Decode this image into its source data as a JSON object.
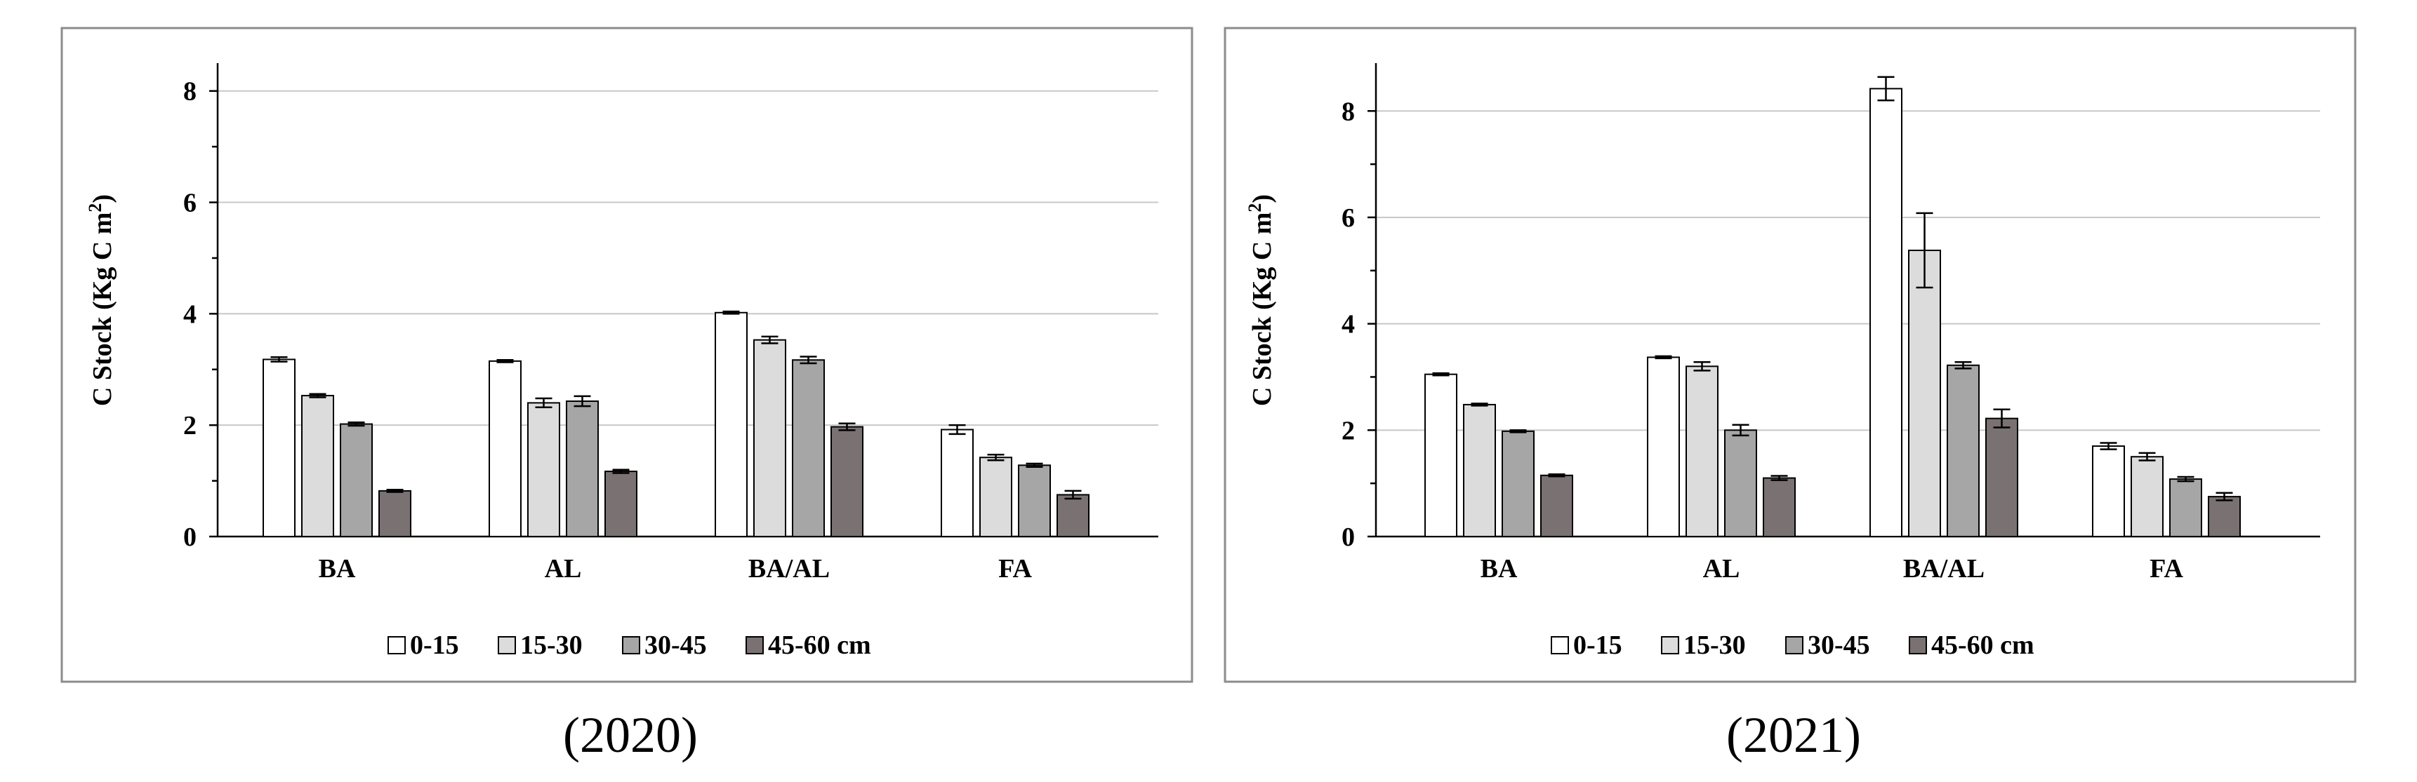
{
  "figure": {
    "colors": {
      "series": [
        "#ffffff",
        "#dcdcdc",
        "#a6a6a6",
        "#7a7272"
      ],
      "grid": "#c8c8c8",
      "frame": "#8c8c8c"
    }
  },
  "chart_data": [
    {
      "type": "bar",
      "caption": "(2020)",
      "title": "",
      "xlabel": "",
      "ylabel": "C Stock (Kg C m",
      "ylabel_sup": "2",
      "ylabel_close": ")",
      "ylim": [
        0,
        8.5
      ],
      "yticks": [
        0,
        2,
        4,
        6,
        8
      ],
      "ytick_labels": [
        "0",
        "2",
        "4",
        "6",
        "8"
      ],
      "grid": true,
      "legend_position": "bottom",
      "categories": [
        "BA",
        "AL",
        "BA/AL",
        "FA"
      ],
      "series": [
        {
          "name": "0-15",
          "values": [
            3.18,
            3.15,
            4.02,
            1.92
          ],
          "errors": [
            0.04,
            0.02,
            0.02,
            0.08
          ]
        },
        {
          "name": "15-30",
          "values": [
            2.53,
            2.4,
            3.53,
            1.42
          ],
          "errors": [
            0.03,
            0.08,
            0.06,
            0.05
          ]
        },
        {
          "name": "30-45",
          "values": [
            2.02,
            2.43,
            3.17,
            1.28
          ],
          "errors": [
            0.03,
            0.09,
            0.06,
            0.03
          ]
        },
        {
          "name": "45-60 cm",
          "values": [
            0.82,
            1.17,
            1.97,
            0.75
          ],
          "errors": [
            0.02,
            0.03,
            0.06,
            0.07
          ]
        }
      ]
    },
    {
      "type": "bar",
      "caption": "(2021)",
      "title": "",
      "xlabel": "",
      "ylabel": "C Stock (Kg C m",
      "ylabel_sup": "2",
      "ylabel_close": ")",
      "ylim": [
        0,
        8.9
      ],
      "yticks": [
        0,
        2,
        4,
        6,
        8
      ],
      "ytick_labels": [
        "0",
        "2",
        "4",
        "6",
        "8"
      ],
      "grid": true,
      "legend_position": "bottom",
      "categories": [
        "BA",
        "AL",
        "BA/AL",
        "FA"
      ],
      "series": [
        {
          "name": "0-15",
          "values": [
            3.05,
            3.37,
            8.42,
            1.7
          ],
          "errors": [
            0.02,
            0.02,
            0.22,
            0.06
          ]
        },
        {
          "name": "15-30",
          "values": [
            2.48,
            3.2,
            5.38,
            1.5
          ],
          "errors": [
            0.02,
            0.08,
            0.7,
            0.07
          ]
        },
        {
          "name": "30-45",
          "values": [
            1.98,
            2.0,
            3.22,
            1.08
          ],
          "errors": [
            0.02,
            0.1,
            0.06,
            0.04
          ]
        },
        {
          "name": "45-60 cm",
          "values": [
            1.15,
            1.1,
            2.22,
            0.75
          ],
          "errors": [
            0.02,
            0.04,
            0.17,
            0.07
          ]
        }
      ]
    }
  ]
}
